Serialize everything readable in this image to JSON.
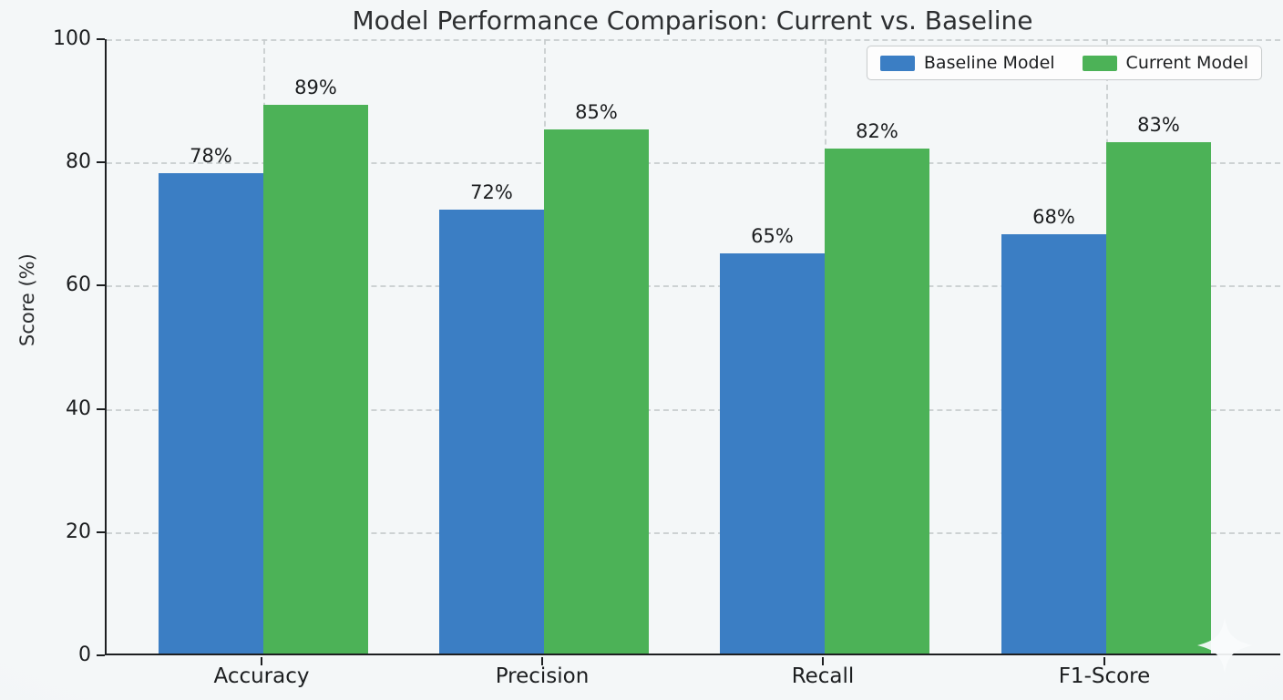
{
  "chart_data": {
    "type": "bar",
    "title": "Model Performance Comparison: Current vs. Baseline",
    "xlabel": "",
    "ylabel": "Score (%)",
    "categories": [
      "Accuracy",
      "Precision",
      "Recall",
      "F1-Score"
    ],
    "series": [
      {
        "name": "Baseline Model",
        "color": "#3b7ec4",
        "values": [
          78,
          72,
          65,
          68
        ]
      },
      {
        "name": "Current Model",
        "color": "#4cb257",
        "values": [
          89,
          85,
          82,
          83
        ]
      }
    ],
    "bar_labels": {
      "Baseline Model": [
        "78%",
        "72%",
        "65%",
        "68%"
      ],
      "Current Model": [
        "89%",
        "85%",
        "82%",
        "83%"
      ]
    },
    "ylim": [
      0,
      100
    ],
    "yticks": [
      0,
      20,
      40,
      60,
      80,
      100
    ],
    "grid": "dashed-both-axes",
    "legend_position": "upper right",
    "colors": {
      "background": "#f2f5f6",
      "grid": "#c7cccd",
      "axis": "#1d1f21",
      "text": "#1c1e20"
    }
  },
  "icons": {
    "sparkle": "sparkle-watermark"
  }
}
